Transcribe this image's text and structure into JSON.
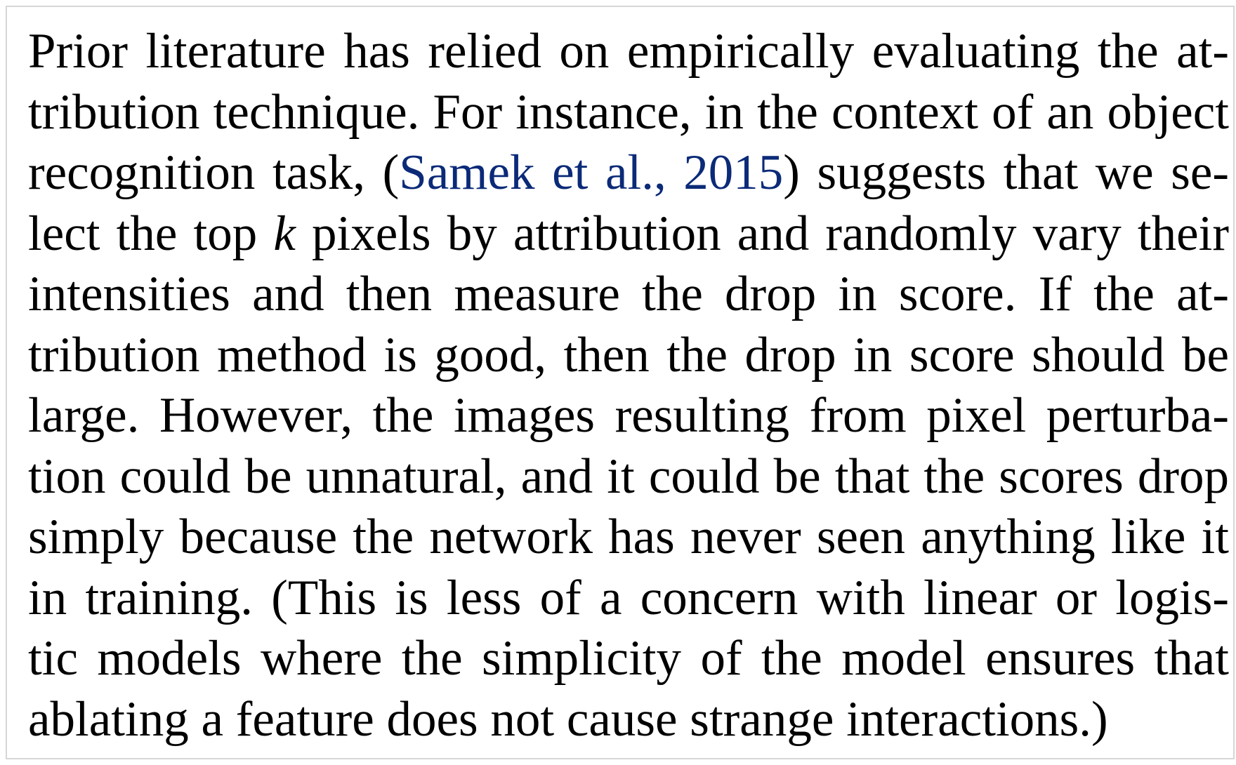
{
  "paragraph": {
    "lines": [
      {
        "text": "Prior literature has relied on empirically evaluating the at-"
      },
      {
        "text": "tribution technique.  For instance, in the context of an object"
      },
      {
        "pre": "recognition task,  (",
        "cite_name": "Samek et al.",
        "cite_sep": ", ",
        "cite_year": "2015",
        "post": ") suggests that we se-"
      },
      {
        "pre": "lect the top ",
        "var": "k",
        "post": " pixels by attribution and randomly vary their"
      },
      {
        "text": "intensities and then measure the drop in score.  If the at-"
      },
      {
        "text": "tribution method is good, then the drop in score should be"
      },
      {
        "text": "large.  However, the images resulting from pixel perturba-"
      },
      {
        "text": "tion could be unnatural, and it could be that the scores drop"
      },
      {
        "text": "simply because the network has never seen anything like it"
      },
      {
        "text": "in training.  (This is less of a concern with linear or logis-"
      },
      {
        "text": "tic models where the simplicity of the model ensures that"
      },
      {
        "text": "ablating a feature does not cause strange interactions.)"
      }
    ],
    "citation_color": "#0b2a78"
  }
}
